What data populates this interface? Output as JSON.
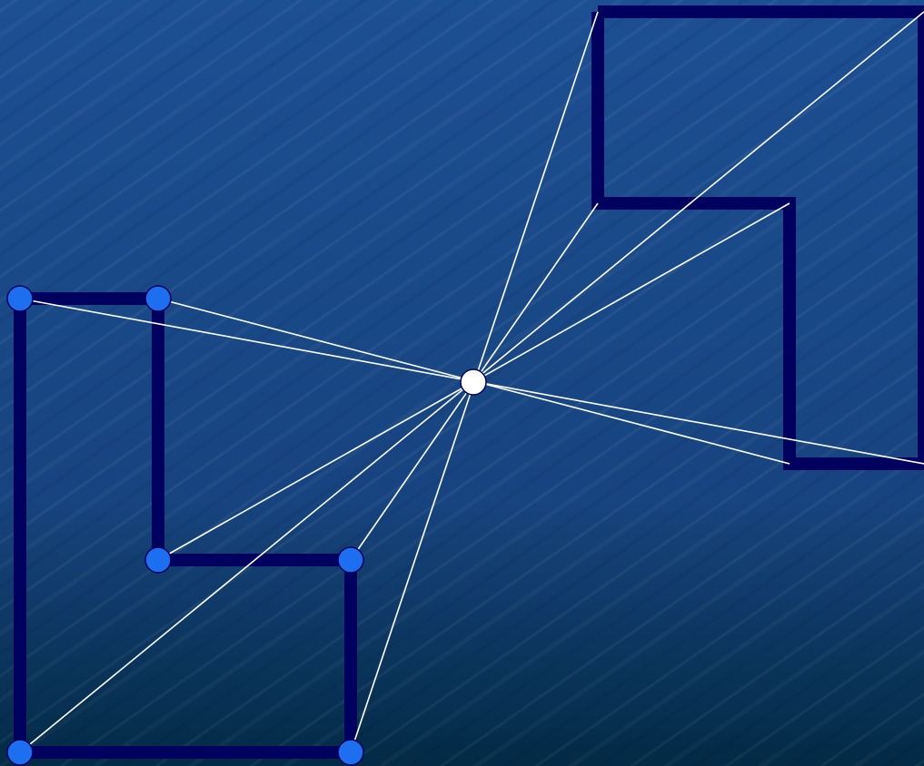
{
  "colors": {
    "background_top": "#1d4f93",
    "background_mid": "#17447f",
    "background_bottom": "#032a45",
    "polygon_stroke": "#00005e",
    "ray": "#ffffff",
    "vertex_fill": "#1e6ef0",
    "vertex_stroke": "#00005e",
    "viewpoint_fill": "#ffffff"
  },
  "diagram": {
    "description_shapes": [
      "original-polygon",
      "reflected-polygon"
    ],
    "vertex_count": 6,
    "center_point": "center-of-symmetry"
  }
}
